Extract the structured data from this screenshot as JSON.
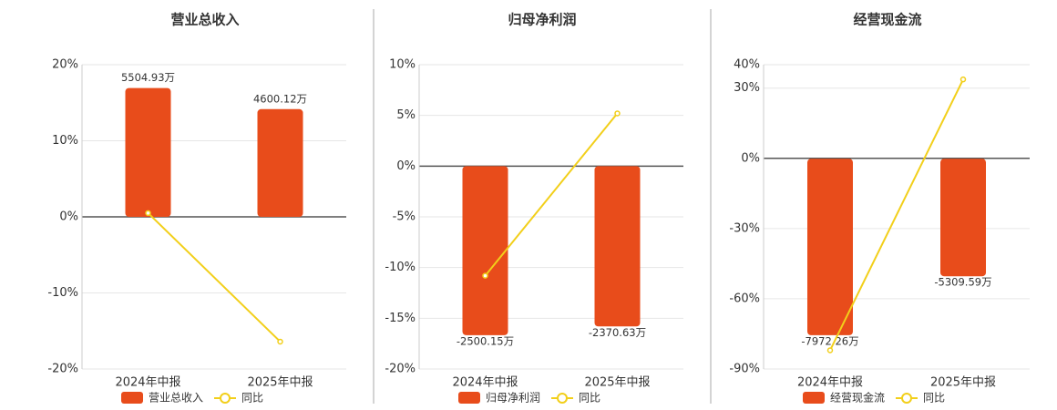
{
  "chart_data": [
    {
      "type": "bar",
      "title": "营业总收入",
      "categories": [
        "2024年中报",
        "2025年中报"
      ],
      "ylim": [
        -20,
        20
      ],
      "yticks": [
        {
          "value": 20,
          "label": "20%"
        },
        {
          "value": 10,
          "label": "10%"
        },
        {
          "value": 0,
          "label": "0%"
        },
        {
          "value": -10,
          "label": "-10%"
        },
        {
          "value": -20,
          "label": "-20%"
        }
      ],
      "y2lim": [
        -6500,
        6500
      ],
      "grid": true,
      "series": [
        {
          "name": "营业总收入",
          "type": "bar",
          "axis": "y2",
          "color": "#e84c1b",
          "values": [
            5504.93,
            4600.12
          ],
          "value_labels": [
            "5504.93万",
            "4600.12万"
          ]
        },
        {
          "name": "同比",
          "type": "line",
          "color": "#f2cf1a",
          "values": [
            0.5,
            -16.4
          ]
        }
      ]
    },
    {
      "type": "bar",
      "title": "归母净利润",
      "categories": [
        "2024年中报",
        "2025年中报"
      ],
      "ylim": [
        -20,
        10
      ],
      "yticks": [
        {
          "value": 10,
          "label": "10%"
        },
        {
          "value": 5,
          "label": "5%"
        },
        {
          "value": 0,
          "label": "0%"
        },
        {
          "value": -5,
          "label": "-5%"
        },
        {
          "value": -10,
          "label": "-10%"
        },
        {
          "value": -15,
          "label": "-15%"
        },
        {
          "value": -20,
          "label": "-20%"
        }
      ],
      "y2lim": [
        -3000,
        1500
      ],
      "grid": true,
      "series": [
        {
          "name": "归母净利润",
          "type": "bar",
          "axis": "y2",
          "color": "#e84c1b",
          "values": [
            -2500.15,
            -2370.63
          ],
          "value_labels": [
            "-2500.15万",
            "-2370.63万"
          ]
        },
        {
          "name": "同比",
          "type": "line",
          "color": "#f2cf1a",
          "values": [
            -10.8,
            5.2
          ]
        }
      ]
    },
    {
      "type": "bar",
      "title": "经营现金流",
      "categories": [
        "2024年中报",
        "2025年中报"
      ],
      "ylim": [
        -90,
        40
      ],
      "yticks": [
        {
          "value": 40,
          "label": "40%"
        },
        {
          "value": 30,
          "label": "30%"
        },
        {
          "value": 0,
          "label": "0%"
        },
        {
          "value": -30,
          "label": "-30%"
        },
        {
          "value": -60,
          "label": "-60%"
        },
        {
          "value": -90,
          "label": "-90%"
        }
      ],
      "y2lim": [
        -9500,
        4250
      ],
      "grid": true,
      "series": [
        {
          "name": "经营现金流",
          "type": "bar",
          "axis": "y2",
          "color": "#e84c1b",
          "values": [
            -7972.26,
            -5309.59
          ],
          "value_labels": [
            "-7972.26万",
            "-5309.59万"
          ]
        },
        {
          "name": "同比",
          "type": "line",
          "color": "#f2cf1a",
          "values": [
            -82,
            33.7
          ]
        }
      ]
    }
  ]
}
